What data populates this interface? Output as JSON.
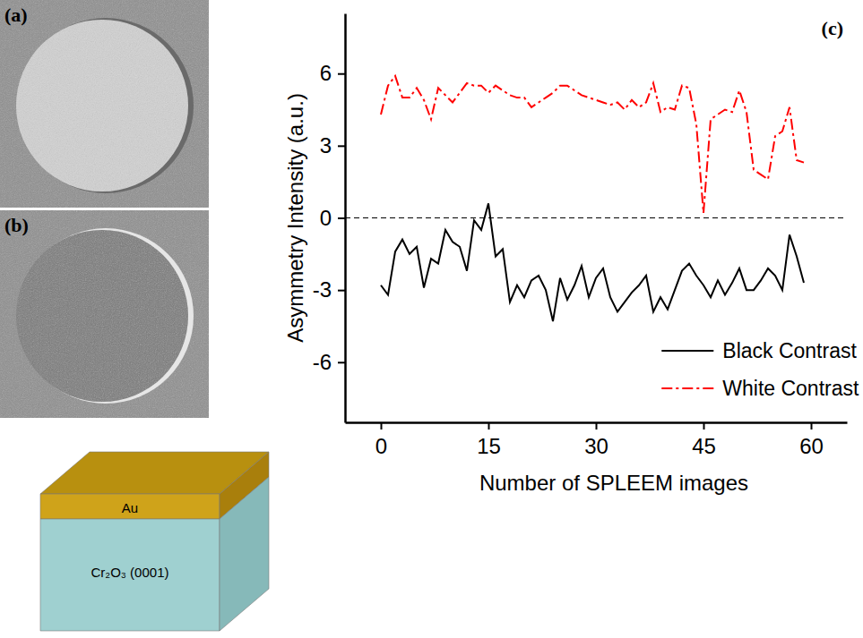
{
  "panels": {
    "a": "(a)",
    "b": "(b)"
  },
  "diagram": {
    "layers": [
      "Au",
      "Cr₂O₃ (0001)"
    ]
  },
  "chart_data": {
    "type": "line",
    "panel_label": "(c)",
    "x_label": "Number of SPLEEM images",
    "y_label": "Asymmetry Intensity (a.u.)",
    "xlim": [
      -5,
      65
    ],
    "xticks": [
      0,
      15,
      30,
      45,
      60
    ],
    "ylim": [
      -8.5,
      8.5
    ],
    "yticks": [
      -6,
      -3,
      0,
      3,
      6
    ],
    "hlines": [
      0
    ],
    "legend": "lower right",
    "x": [
      0,
      1,
      2,
      3,
      4,
      5,
      6,
      7,
      8,
      9,
      10,
      11,
      12,
      13,
      14,
      15,
      16,
      17,
      18,
      19,
      20,
      21,
      22,
      23,
      24,
      25,
      26,
      27,
      28,
      29,
      30,
      31,
      32,
      33,
      34,
      35,
      36,
      37,
      38,
      39,
      40,
      41,
      42,
      43,
      44,
      45,
      46,
      47,
      48,
      49,
      50,
      51,
      52,
      53,
      54,
      55,
      56,
      57,
      58,
      59
    ],
    "series": [
      {
        "name": "Black Contrast",
        "color": "#000000",
        "line_style": "solid",
        "values": [
          -2.8,
          -3.2,
          -1.4,
          -0.9,
          -1.5,
          -1.2,
          -2.9,
          -1.7,
          -1.9,
          -0.5,
          -1.0,
          -1.2,
          -2.2,
          -0.1,
          -0.5,
          0.6,
          -1.6,
          -1.3,
          -3.5,
          -2.8,
          -3.3,
          -2.6,
          -2.4,
          -3.0,
          -4.3,
          -2.5,
          -3.4,
          -2.8,
          -2.0,
          -3.3,
          -2.5,
          -2.1,
          -3.3,
          -3.9,
          -3.5,
          -3.1,
          -2.8,
          -2.4,
          -3.9,
          -3.3,
          -3.8,
          -3.0,
          -2.2,
          -1.9,
          -2.4,
          -2.8,
          -3.3,
          -2.6,
          -3.2,
          -2.7,
          -2.1,
          -3.0,
          -3.0,
          -2.6,
          -2.1,
          -2.4,
          -3.0,
          -0.7,
          -1.6,
          -2.7
        ]
      },
      {
        "name": "White Contrast",
        "color": "#ff0000",
        "line_style": "dashdot",
        "values": [
          4.3,
          5.5,
          5.9,
          5.0,
          5.0,
          5.4,
          4.9,
          4.1,
          5.4,
          5.1,
          4.8,
          5.2,
          5.6,
          5.5,
          5.5,
          5.2,
          5.5,
          5.3,
          5.1,
          5.0,
          5.0,
          4.6,
          4.8,
          5.0,
          5.2,
          5.5,
          5.5,
          5.3,
          5.1,
          5.0,
          4.9,
          4.8,
          4.7,
          4.8,
          4.5,
          4.9,
          4.6,
          4.8,
          5.6,
          4.4,
          4.6,
          4.5,
          5.5,
          5.4,
          3.9,
          0.2,
          4.1,
          4.3,
          4.5,
          4.4,
          5.3,
          4.4,
          2.0,
          1.8,
          1.6,
          3.4,
          3.6,
          4.6,
          2.4,
          2.3
        ]
      }
    ]
  }
}
